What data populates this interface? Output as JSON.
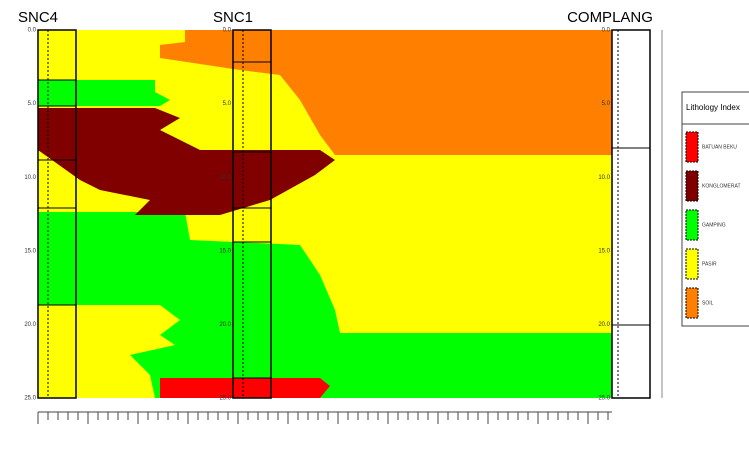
{
  "wells": [
    {
      "name": "SNC4",
      "depth_labels": [
        "0.0",
        "5.0",
        "10.0",
        "15.0",
        "20.0",
        "25.0"
      ]
    },
    {
      "name": "SNC1",
      "depth_labels": [
        "0.0",
        "5.0",
        "10.0",
        "15.0",
        "20.0",
        "25.0"
      ]
    },
    {
      "name": "COMPLANG",
      "depth_labels": [
        "0.0",
        "5.0",
        "10.0",
        "15.0",
        "20.0",
        "25.0"
      ]
    }
  ],
  "legend": {
    "title": "Lithology Index",
    "items": [
      "BATUAN BEKU",
      "KONGLOMERAT",
      "GAMPING",
      "PASIR",
      "SOIL"
    ]
  }
}
